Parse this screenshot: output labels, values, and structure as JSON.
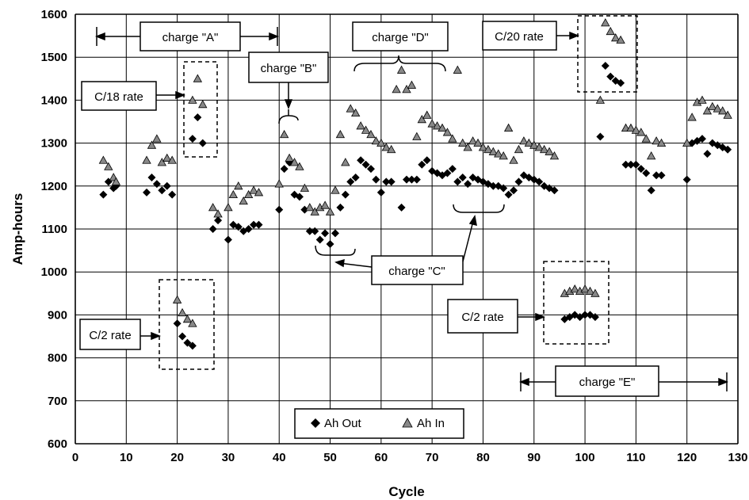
{
  "chart_data": {
    "type": "scatter",
    "xlabel": "Cycle",
    "ylabel": "Amp-hours",
    "xlim": [
      0,
      130
    ],
    "ylim": [
      600,
      1600
    ],
    "xticks": [
      0,
      10,
      20,
      30,
      40,
      50,
      60,
      70,
      80,
      90,
      100,
      110,
      120,
      130
    ],
    "yticks": [
      600,
      700,
      800,
      900,
      1000,
      1100,
      1200,
      1300,
      1400,
      1500,
      1600
    ],
    "grid": true,
    "legend_position": "bottom-center",
    "series": [
      {
        "name": "Ah Out",
        "marker": "diamond",
        "points": [
          [
            5.5,
            1180
          ],
          [
            6.5,
            1210
          ],
          [
            7.5,
            1195
          ],
          [
            8,
            1200
          ],
          [
            14,
            1185
          ],
          [
            15,
            1220
          ],
          [
            16,
            1205
          ],
          [
            17,
            1190
          ],
          [
            18,
            1200
          ],
          [
            19,
            1180
          ],
          [
            20,
            880
          ],
          [
            21,
            850
          ],
          [
            22,
            835
          ],
          [
            23,
            828
          ],
          [
            23,
            1310
          ],
          [
            24,
            1360
          ],
          [
            25,
            1300
          ],
          [
            27,
            1100
          ],
          [
            28,
            1120
          ],
          [
            30,
            1075
          ],
          [
            31,
            1110
          ],
          [
            32,
            1105
          ],
          [
            33,
            1095
          ],
          [
            34,
            1100
          ],
          [
            35,
            1110
          ],
          [
            36,
            1110
          ],
          [
            40,
            1145
          ],
          [
            41,
            1240
          ],
          [
            42,
            1255
          ],
          [
            43,
            1180
          ],
          [
            44,
            1175
          ],
          [
            45,
            1145
          ],
          [
            46,
            1095
          ],
          [
            47,
            1095
          ],
          [
            48,
            1075
          ],
          [
            49,
            1090
          ],
          [
            50,
            1065
          ],
          [
            51,
            1090
          ],
          [
            52,
            1150
          ],
          [
            53,
            1180
          ],
          [
            54,
            1210
          ],
          [
            55,
            1220
          ],
          [
            56,
            1260
          ],
          [
            57,
            1250
          ],
          [
            58,
            1240
          ],
          [
            59,
            1215
          ],
          [
            60,
            1185
          ],
          [
            61,
            1210
          ],
          [
            62,
            1210
          ],
          [
            64,
            1150
          ],
          [
            65,
            1215
          ],
          [
            66,
            1215
          ],
          [
            67,
            1215
          ],
          [
            68,
            1250
          ],
          [
            69,
            1260
          ],
          [
            70,
            1235
          ],
          [
            71,
            1230
          ],
          [
            72,
            1225
          ],
          [
            73,
            1230
          ],
          [
            74,
            1240
          ],
          [
            75,
            1210
          ],
          [
            76,
            1220
          ],
          [
            77,
            1205
          ],
          [
            78,
            1220
          ],
          [
            79,
            1215
          ],
          [
            80,
            1210
          ],
          [
            81,
            1205
          ],
          [
            82,
            1200
          ],
          [
            83,
            1200
          ],
          [
            84,
            1195
          ],
          [
            85,
            1180
          ],
          [
            86,
            1190
          ],
          [
            87,
            1210
          ],
          [
            88,
            1225
          ],
          [
            89,
            1220
          ],
          [
            90,
            1215
          ],
          [
            91,
            1210
          ],
          [
            92,
            1200
          ],
          [
            93,
            1195
          ],
          [
            94,
            1190
          ],
          [
            96,
            890
          ],
          [
            97,
            895
          ],
          [
            98,
            900
          ],
          [
            99,
            895
          ],
          [
            100,
            900
          ],
          [
            101,
            900
          ],
          [
            102,
            895
          ],
          [
            103,
            1315
          ],
          [
            104,
            1480
          ],
          [
            105,
            1455
          ],
          [
            106,
            1445
          ],
          [
            107,
            1440
          ],
          [
            108,
            1250
          ],
          [
            109,
            1250
          ],
          [
            110,
            1250
          ],
          [
            111,
            1240
          ],
          [
            112,
            1230
          ],
          [
            113,
            1190
          ],
          [
            114,
            1225
          ],
          [
            115,
            1225
          ],
          [
            120,
            1215
          ],
          [
            121,
            1300
          ],
          [
            122,
            1305
          ],
          [
            123,
            1310
          ],
          [
            124,
            1275
          ],
          [
            125,
            1300
          ],
          [
            126,
            1295
          ],
          [
            127,
            1290
          ],
          [
            128,
            1285
          ]
        ]
      },
      {
        "name": "Ah In",
        "marker": "triangle",
        "points": [
          [
            5.5,
            1260
          ],
          [
            6.5,
            1245
          ],
          [
            7.5,
            1220
          ],
          [
            8,
            1210
          ],
          [
            14,
            1260
          ],
          [
            15,
            1295
          ],
          [
            16,
            1310
          ],
          [
            17,
            1255
          ],
          [
            18,
            1265
          ],
          [
            19,
            1260
          ],
          [
            20,
            935
          ],
          [
            21,
            905
          ],
          [
            22,
            890
          ],
          [
            23,
            880
          ],
          [
            23,
            1400
          ],
          [
            24,
            1450
          ],
          [
            25,
            1390
          ],
          [
            27,
            1150
          ],
          [
            28,
            1135
          ],
          [
            30,
            1150
          ],
          [
            31,
            1180
          ],
          [
            32,
            1200
          ],
          [
            33,
            1165
          ],
          [
            34,
            1180
          ],
          [
            35,
            1190
          ],
          [
            36,
            1185
          ],
          [
            40,
            1205
          ],
          [
            41,
            1320
          ],
          [
            42,
            1265
          ],
          [
            43,
            1255
          ],
          [
            44,
            1245
          ],
          [
            45,
            1195
          ],
          [
            46,
            1150
          ],
          [
            47,
            1140
          ],
          [
            48,
            1150
          ],
          [
            49,
            1155
          ],
          [
            50,
            1140
          ],
          [
            51,
            1190
          ],
          [
            52,
            1320
          ],
          [
            53,
            1255
          ],
          [
            54,
            1380
          ],
          [
            55,
            1370
          ],
          [
            56,
            1340
          ],
          [
            57,
            1330
          ],
          [
            58,
            1320
          ],
          [
            59,
            1305
          ],
          [
            60,
            1300
          ],
          [
            61,
            1290
          ],
          [
            62,
            1285
          ],
          [
            63,
            1425
          ],
          [
            64,
            1470
          ],
          [
            65,
            1425
          ],
          [
            66,
            1435
          ],
          [
            67,
            1315
          ],
          [
            68,
            1355
          ],
          [
            69,
            1365
          ],
          [
            70,
            1345
          ],
          [
            71,
            1340
          ],
          [
            72,
            1335
          ],
          [
            73,
            1325
          ],
          [
            74,
            1310
          ],
          [
            75,
            1470
          ],
          [
            76,
            1300
          ],
          [
            77,
            1290
          ],
          [
            78,
            1305
          ],
          [
            79,
            1300
          ],
          [
            80,
            1290
          ],
          [
            81,
            1285
          ],
          [
            82,
            1280
          ],
          [
            83,
            1275
          ],
          [
            84,
            1270
          ],
          [
            85,
            1335
          ],
          [
            86,
            1260
          ],
          [
            87,
            1285
          ],
          [
            88,
            1305
          ],
          [
            89,
            1300
          ],
          [
            90,
            1295
          ],
          [
            91,
            1290
          ],
          [
            92,
            1285
          ],
          [
            93,
            1280
          ],
          [
            94,
            1270
          ],
          [
            96,
            950
          ],
          [
            97,
            955
          ],
          [
            98,
            960
          ],
          [
            99,
            955
          ],
          [
            100,
            960
          ],
          [
            101,
            955
          ],
          [
            102,
            950
          ],
          [
            103,
            1400
          ],
          [
            104,
            1580
          ],
          [
            105,
            1560
          ],
          [
            106,
            1545
          ],
          [
            107,
            1540
          ],
          [
            108,
            1335
          ],
          [
            109,
            1335
          ],
          [
            110,
            1330
          ],
          [
            111,
            1325
          ],
          [
            112,
            1310
          ],
          [
            113,
            1270
          ],
          [
            114,
            1305
          ],
          [
            115,
            1300
          ],
          [
            120,
            1300
          ],
          [
            121,
            1360
          ],
          [
            122,
            1395
          ],
          [
            123,
            1400
          ],
          [
            124,
            1375
          ],
          [
            125,
            1385
          ],
          [
            126,
            1380
          ],
          [
            127,
            1375
          ],
          [
            128,
            1365
          ]
        ]
      }
    ],
    "legend": [
      {
        "label": "Ah Out",
        "marker": "diamond"
      },
      {
        "label": "Ah In",
        "marker": "triangle"
      }
    ],
    "annotations": [
      {
        "label": "charge \"A\""
      },
      {
        "label": "charge \"B\""
      },
      {
        "label": "charge \"C\""
      },
      {
        "label": "charge \"D\""
      },
      {
        "label": "charge \"E\""
      },
      {
        "label": "C/18 rate"
      },
      {
        "label": "C/20 rate"
      },
      {
        "label": "C/2 rate"
      },
      {
        "label": "C/2 rate"
      }
    ]
  }
}
